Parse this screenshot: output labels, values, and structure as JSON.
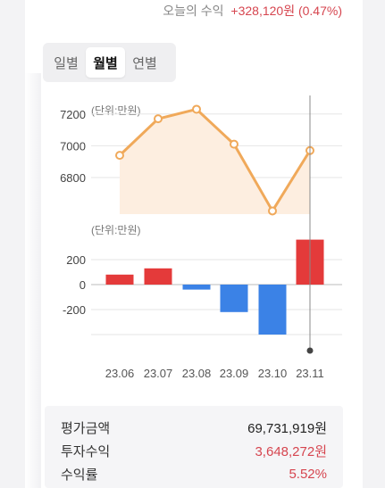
{
  "header": {
    "today_label": "오늘의 수익",
    "today_value": "+328,120원 (0.47%)"
  },
  "tabs": [
    {
      "label": "일별",
      "active": false
    },
    {
      "label": "월별",
      "active": true
    },
    {
      "label": "연별",
      "active": false
    }
  ],
  "chart_data": [
    {
      "type": "line",
      "unit_label": "(단위:만원)",
      "x": [
        "23.06",
        "23.07",
        "23.08",
        "23.09",
        "23.10",
        "23.11"
      ],
      "values": [
        6940,
        7170,
        7230,
        7010,
        6590,
        6970
      ],
      "yticks": [
        6800,
        7000,
        7200
      ],
      "ylim": [
        6570,
        7300
      ],
      "color": "#f0a95a",
      "fill": "#fdeee0"
    },
    {
      "type": "bar",
      "unit_label": "(단위:만원)",
      "categories": [
        "23.06",
        "23.07",
        "23.08",
        "23.09",
        "23.10",
        "23.11"
      ],
      "values": [
        80,
        130,
        -40,
        -220,
        -400,
        360
      ],
      "yticks": [
        200,
        0,
        -200
      ],
      "ylim": [
        -400,
        400
      ],
      "colors": {
        "positive": "#e43a3a",
        "negative": "#3b82e6"
      }
    }
  ],
  "summary": {
    "eval_label": "평가금액",
    "eval_value": "69,731,919원",
    "profit_label": "투자수익",
    "profit_value": "3,648,272원",
    "rate_label": "수익률",
    "rate_value": "5.52%"
  }
}
